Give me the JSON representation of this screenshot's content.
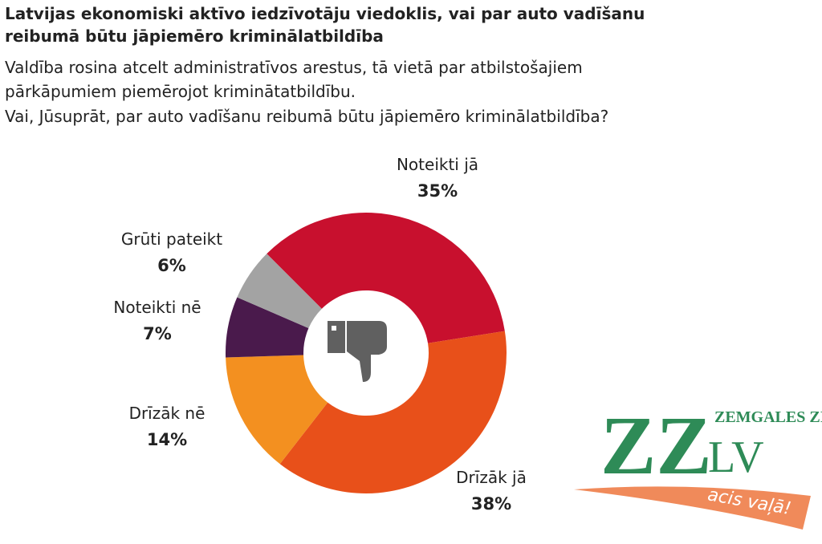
{
  "chart_data": {
    "type": "pie",
    "title": [
      "Latvijas ekonomiski aktīvo iedzīvotāju viedoklis, vai par auto vadīšanu",
      "reibumā būtu jāpiemēro kriminālatbildība"
    ],
    "subtitle": [
      "Valdība rosina atcelt administratīvos arestus, tā vietā par atbilstošajiem",
      "pārkāpumiem piemērojot kriminātatbildību.",
      "Vai, Jūsuprāt, par auto vadīšanu reibumā būtu jāpiemēro kriminālatbildība?"
    ],
    "categories": [
      "Noteikti jā",
      "Drīzāk jā",
      "Drīzāk nē",
      "Noteikti nē",
      "Grūti pateikt"
    ],
    "values": [
      35,
      38,
      14,
      7,
      6
    ],
    "value_labels": [
      "35%",
      "38%",
      "14%",
      "7%",
      "6%"
    ],
    "colors": [
      "#c8102e",
      "#e8501a",
      "#f39020",
      "#4a1a4c",
      "#a3a3a3"
    ]
  },
  "logo": {
    "mark": "ZZ",
    "name": "ZEMGALES ZIŅAS",
    "domain": ".LV",
    "slogan": "acis vaļā!"
  }
}
